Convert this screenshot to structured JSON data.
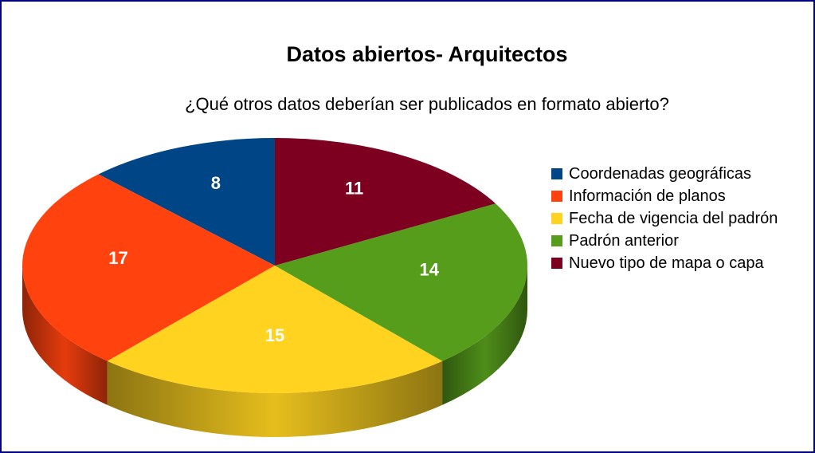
{
  "chart_data": {
    "type": "pie",
    "title": "Datos abiertos- Arquitectos",
    "subtitle": "¿Qué otros datos deberían ser publicados en formato abierto?",
    "categories": [
      "Coordenadas geográficas",
      "Información de planos",
      "Fecha de vigencia del padrón",
      "Padrón anterior",
      "Nuevo tipo de mapa o capa"
    ],
    "values": [
      8,
      17,
      15,
      14,
      11
    ],
    "colors": [
      "#004586",
      "#ff420e",
      "#ffd320",
      "#579d1c",
      "#7e0021"
    ],
    "legend": "right"
  }
}
